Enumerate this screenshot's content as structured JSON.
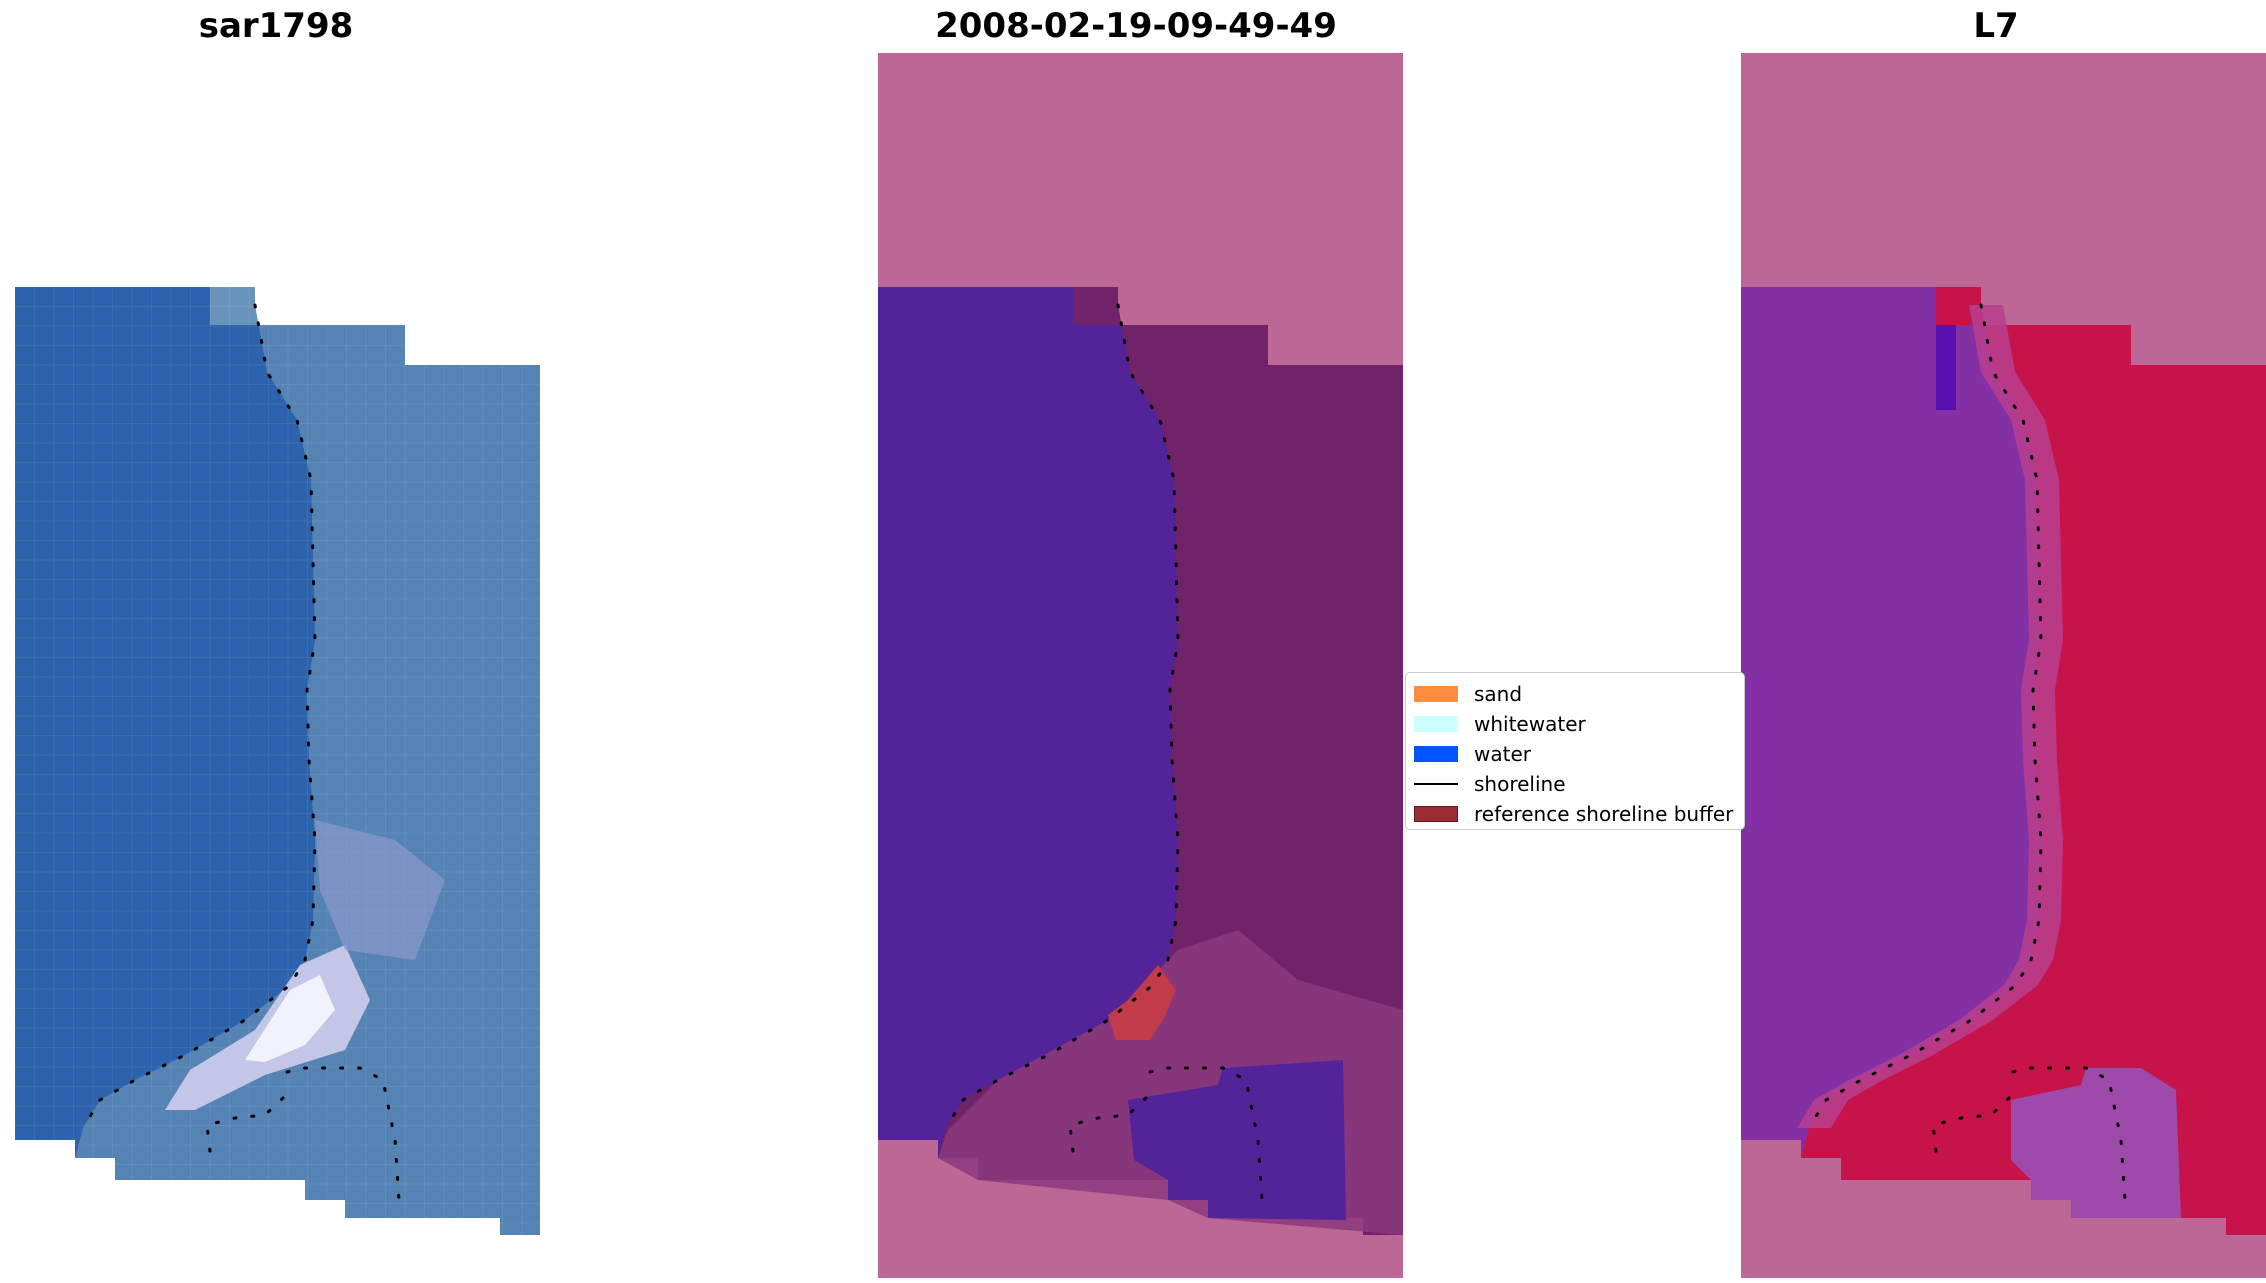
{
  "panels": [
    {
      "title": "sar1798"
    },
    {
      "title": "2008-02-19-09-49-49"
    },
    {
      "title": "L7"
    }
  ],
  "legend": {
    "entries": [
      {
        "label": "sand",
        "color": "#ff8c3f"
      },
      {
        "label": "whitewater",
        "color": "#ccffff"
      },
      {
        "label": "water",
        "color": "#0055ff"
      },
      {
        "label": "shoreline",
        "color": "#000000"
      },
      {
        "label": "reference shoreline buffer",
        "color": "#9b2c34"
      }
    ]
  },
  "colors": {
    "mask": "#bd6796",
    "rgb_water": "#2d62ac",
    "rgb_land": "#5a87b4",
    "class_water": "#53239a",
    "class_land": "#702368",
    "ndwi_water": "#8430a5",
    "ndwi_land": "#c6134a"
  },
  "chart_data": {
    "type": "image",
    "panels": [
      "sar1798",
      "2008-02-19-09-49-49",
      "L7"
    ],
    "legend_placement": "center, between second and third panel",
    "legend_entries": [
      "sand",
      "whitewater",
      "water",
      "shoreline",
      "reference shoreline buffer"
    ]
  }
}
